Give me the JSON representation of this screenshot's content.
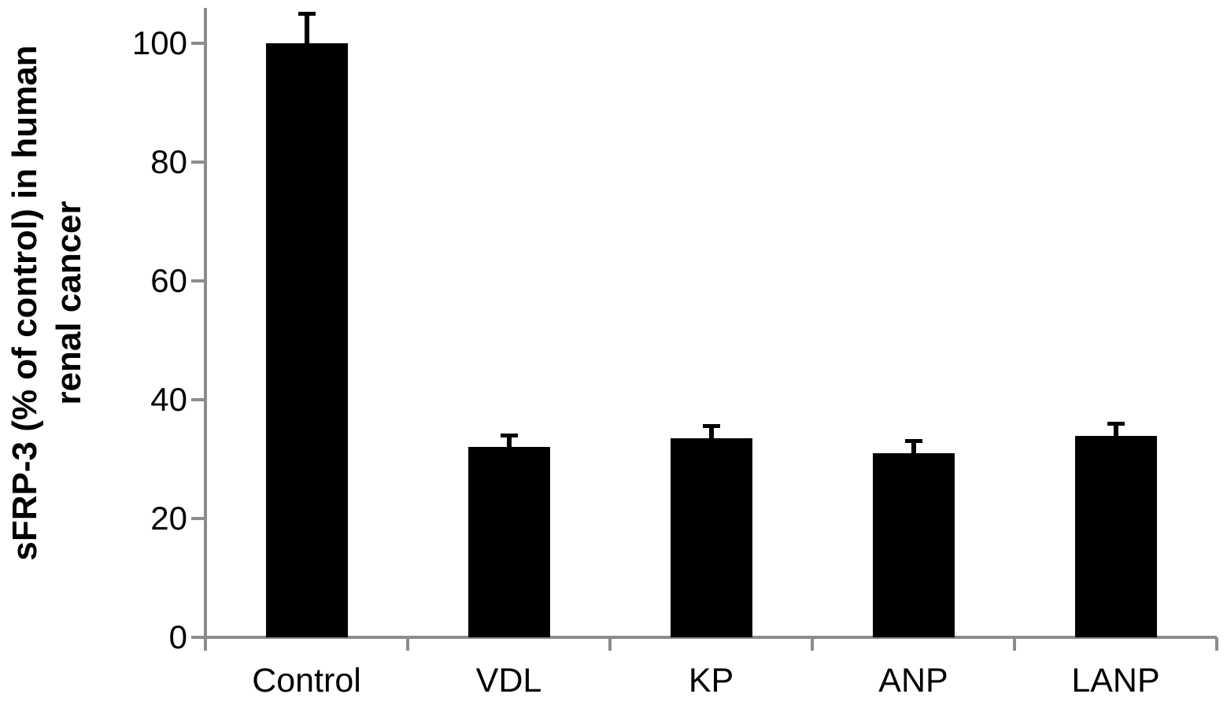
{
  "chart_data": {
    "type": "bar",
    "title": "",
    "xlabel": "",
    "ylabel": "sFRP-3 (% of control) in human renal cancer",
    "ylabel_lines": [
      "sFRP-3 (% of control) in human",
      "renal cancer"
    ],
    "categories": [
      "Control",
      "VDL",
      "KP",
      "ANP",
      "LANP"
    ],
    "values": [
      100,
      32,
      33.5,
      31,
      33.9
    ],
    "errors": [
      5,
      2,
      2,
      2,
      2
    ],
    "error_direction": "upper-only",
    "yticks": [
      0,
      20,
      40,
      60,
      80,
      100
    ],
    "ylim": [
      0,
      107
    ],
    "grid": false,
    "legend": false,
    "bar_color": "#000000",
    "axis_color": "#8c8c8c",
    "text_color": "#000000",
    "background_color": "#ffffff"
  }
}
